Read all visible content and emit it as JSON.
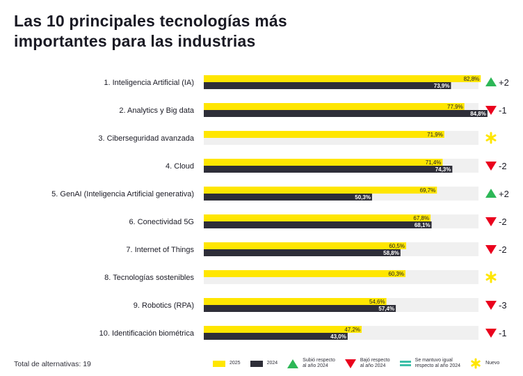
{
  "title_line1": "Las 10 principales tecnologías más",
  "title_line2": "importantes para las industrias",
  "footer_note": "Total de alternativas: 19",
  "colors": {
    "y2025": "#ffe600",
    "y2024": "#2e2e38",
    "track": "#f0f0f0",
    "up": "#2db757",
    "down": "#ea011d",
    "same": "#3cbfa8",
    "new": "#ffe600"
  },
  "legend": {
    "y2025": "2025",
    "y2024": "2024",
    "up_line1": "Subió respecto",
    "up_line2": "al año 2024",
    "down_line1": "Bajó respecto",
    "down_line2": "al año 2024",
    "same_line1": "Se mantuvo igual",
    "same_line2": "respecto al año 2024",
    "new": "Nuevo"
  },
  "chart_data": {
    "type": "bar",
    "orientation": "horizontal",
    "xlim": [
      0,
      100
    ],
    "series": [
      {
        "name": "2025",
        "values": [
          82.8,
          77.9,
          71.9,
          71.4,
          69.7,
          67.8,
          60.5,
          60.3,
          54.6,
          47.2
        ]
      },
      {
        "name": "2024",
        "values": [
          73.9,
          84.8,
          null,
          74.3,
          50.3,
          68.1,
          58.8,
          null,
          57.4,
          43.0
        ]
      }
    ],
    "categories": [
      "1. Inteligencia Artificial (IA)",
      "2. Analytics y Big data",
      "3. Ciberseguridad avanzada",
      "4. Cloud",
      "5. GenAI (Inteligencia Artificial generativa)",
      "6. Conectividad 5G",
      "7. Internet of Things",
      "8. Tecnologías sostenibles",
      "9. Robotics (RPA)",
      "10. Identificación biométrica"
    ],
    "labels_2025": [
      "82,8%",
      "77,9%",
      "71,9%",
      "71,4%",
      "69,7%",
      "67,8%",
      "60,5%",
      "60,3%",
      "54,6%",
      "47,2%"
    ],
    "labels_2024": [
      "73,9%",
      "84,8%",
      "",
      "74,3%",
      "50,3%",
      "68,1%",
      "58,8%",
      "",
      "57,4%",
      "43,0%"
    ],
    "changes": [
      {
        "type": "up",
        "label": "+2"
      },
      {
        "type": "down",
        "label": "-1"
      },
      {
        "type": "new",
        "label": ""
      },
      {
        "type": "down",
        "label": "-2"
      },
      {
        "type": "up",
        "label": "+2"
      },
      {
        "type": "down",
        "label": "-2"
      },
      {
        "type": "down",
        "label": "-2"
      },
      {
        "type": "new",
        "label": ""
      },
      {
        "type": "down",
        "label": "-3"
      },
      {
        "type": "down",
        "label": "-1"
      }
    ]
  }
}
